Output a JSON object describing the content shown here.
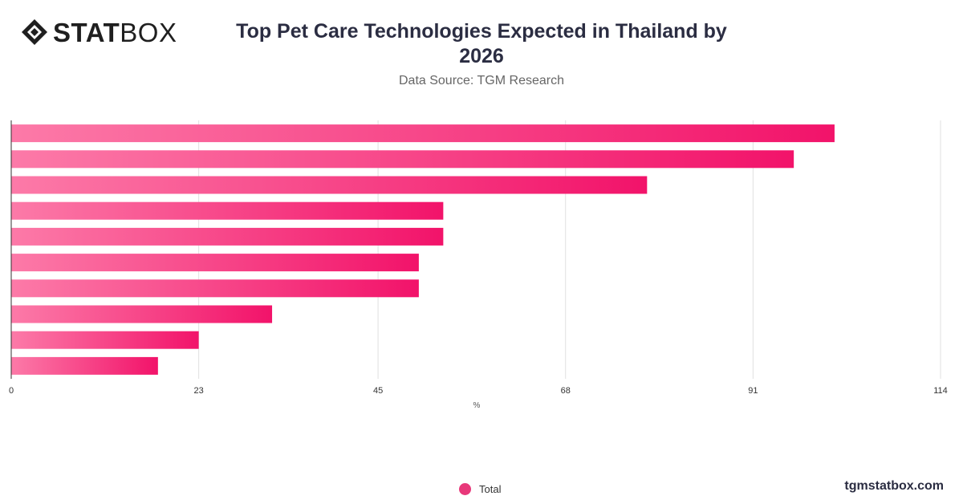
{
  "brand": {
    "logo_bold": "STAT",
    "logo_light": "BOX",
    "website": "tgmstatbox.com"
  },
  "header": {
    "title": "Top Pet Care Technologies Expected in Thailand by 2026",
    "subtitle": "Data Source: TGM Research"
  },
  "legend": {
    "label": "Total",
    "color": "#e8387a"
  },
  "chart_data": {
    "type": "bar",
    "orientation": "horizontal",
    "title": "Top Pet Care Technologies Expected in Thailand by 2026",
    "xlabel": "%",
    "ylabel": "",
    "xlim": [
      0,
      114
    ],
    "x_ticks": [
      "0",
      "23",
      "45",
      "68",
      "91",
      "114"
    ],
    "grid": true,
    "legend_position": "bottom",
    "series": [
      {
        "name": "Total",
        "values": [
          101,
          96,
          78,
          53,
          53,
          50,
          50,
          32,
          23,
          18
        ]
      }
    ],
    "colors": {
      "bar_light": "#fc7aa8",
      "bar_dark": "#f2136a",
      "grid": "#e0e0e0",
      "axis": "#333333"
    }
  }
}
